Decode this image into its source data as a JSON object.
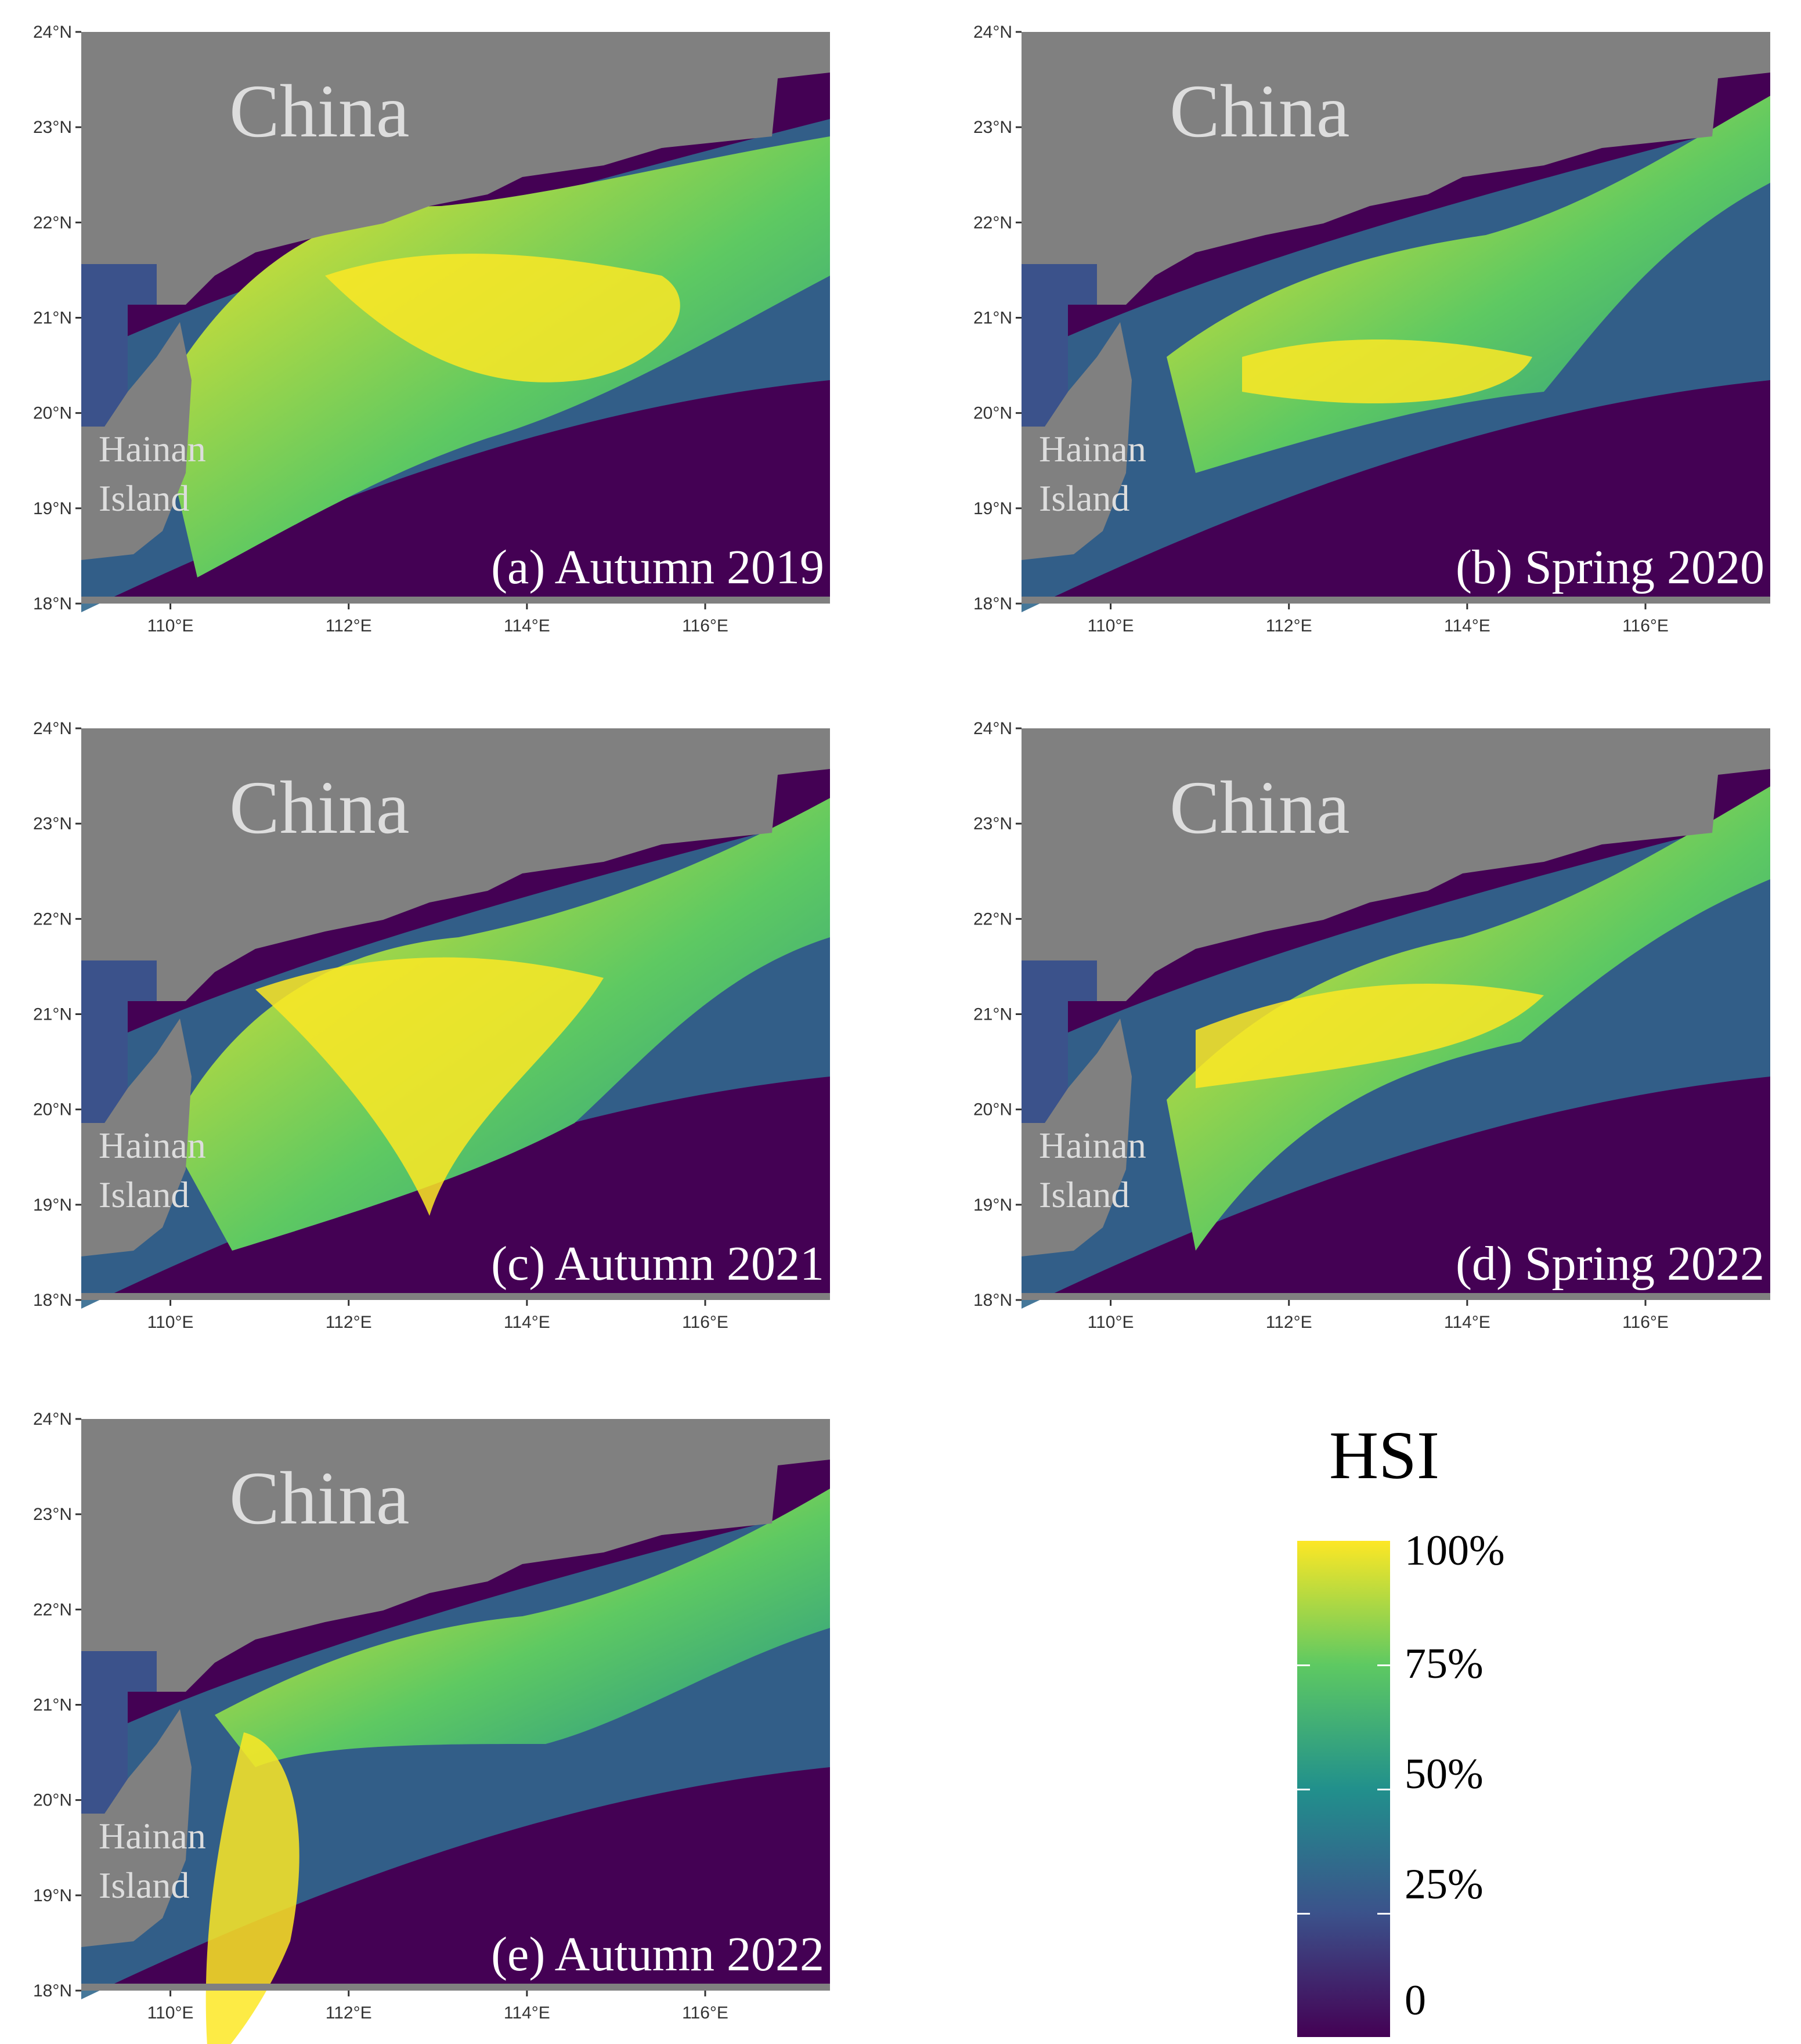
{
  "figure": {
    "panels": [
      {
        "id": "a",
        "label": "(a) Autumn 2019",
        "china_label": "China",
        "island_label": [
          "Hainan",
          "Island"
        ]
      },
      {
        "id": "b",
        "label": "(b) Spring 2020",
        "china_label": "China",
        "island_label": [
          "Hainan",
          "Island"
        ]
      },
      {
        "id": "c",
        "label": "(c) Autumn 2021",
        "china_label": "China",
        "island_label": [
          "Hainan",
          "Island"
        ]
      },
      {
        "id": "d",
        "label": "(d) Spring 2022",
        "china_label": "China",
        "island_label": [
          "Hainan",
          "Island"
        ]
      },
      {
        "id": "e",
        "label": "(e) Autumn 2022",
        "china_label": "China",
        "island_label": [
          "Hainan",
          "Island"
        ]
      }
    ],
    "lat_ticks": [
      "24°N",
      "23°N",
      "22°N",
      "21°N",
      "20°N",
      "19°N",
      "18°N"
    ],
    "lon_ticks": [
      "110°E",
      "112°E",
      "114°E",
      "116°E"
    ],
    "extent": {
      "lon_min": 109,
      "lon_max": 117.4,
      "lat_min": 18,
      "lat_max": 24
    }
  },
  "legend": {
    "title": "HSI",
    "labels": [
      "100%",
      "75%",
      "50%",
      "25%",
      "0"
    ],
    "colors": [
      "#fde725",
      "#5ec962",
      "#21908c",
      "#3b528b",
      "#440154"
    ]
  },
  "colors": {
    "land": "#808080",
    "low": "#440154",
    "mid": "#21908c",
    "high": "#fde725"
  }
}
